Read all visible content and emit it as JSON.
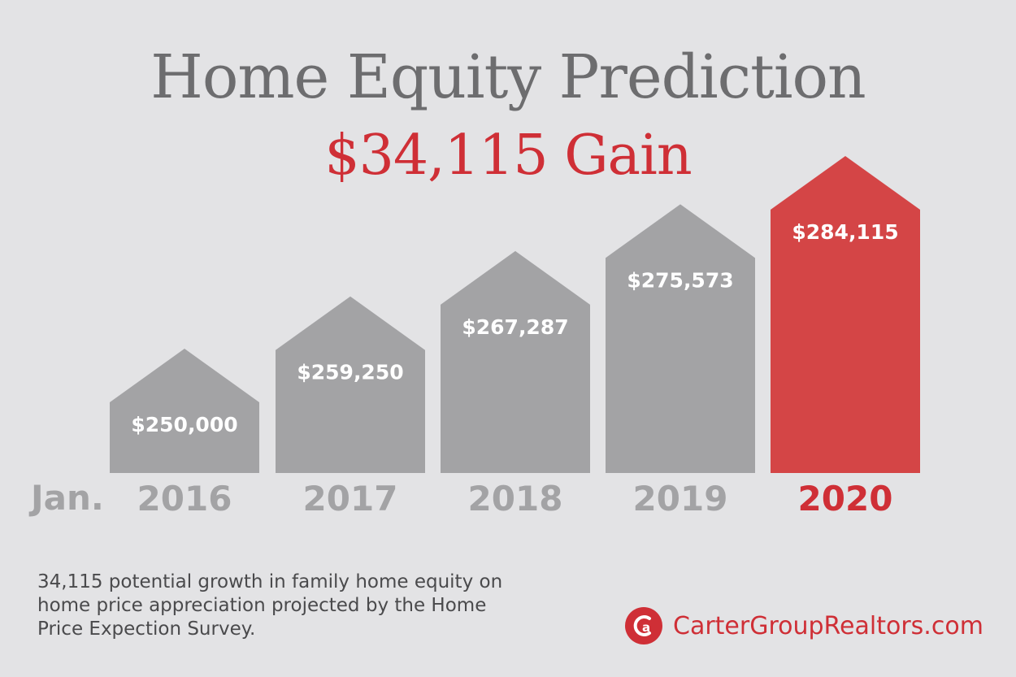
{
  "title": "Home Equity Prediction",
  "subtitle": "$34,115 Gain",
  "x_prefix": "Jan.",
  "footnote": "34,115 potential growth in family home equity on home price appreciation projected by the Home Price Expection Survey.",
  "brand": {
    "text": "CarterGroupRealtors.com",
    "icon": "carter-group-logo-icon"
  },
  "colors": {
    "bar": "#a3a3a5",
    "highlight": "#d44546",
    "year_label": "#a3a3a5",
    "year_highlight": "#cf2f36",
    "accent": "#cf2f36"
  },
  "chart_data": {
    "type": "bar",
    "categories": [
      "2016",
      "2017",
      "2018",
      "2019",
      "2020"
    ],
    "values": [
      250000,
      259250,
      267287,
      275573,
      284115
    ],
    "value_labels": [
      "$250,000",
      "$259,250",
      "$267,287",
      "$275,573",
      "$284,115"
    ],
    "highlight_index": 4,
    "title": "Home Equity Prediction",
    "subtitle": "$34,115 Gain",
    "xlabel": "",
    "ylabel": ""
  }
}
